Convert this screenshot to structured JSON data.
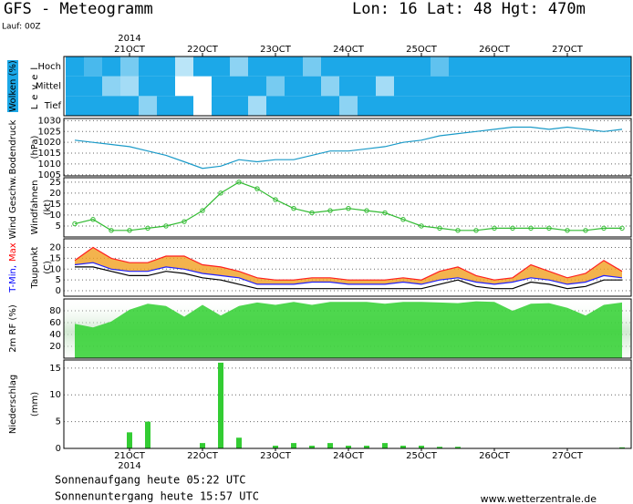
{
  "header": {
    "title": "GFS - Meteogramm",
    "location": "Lon: 16 Lat: 48 Hgt: 470m",
    "run": "Lauf: 00Z"
  },
  "time_axis": {
    "year": "2014",
    "xlim": [
      -21.6,
      165
    ],
    "xticks": [
      {
        "value": 0,
        "label": "21OCT"
      },
      {
        "value": 24,
        "label": "22OCT"
      },
      {
        "value": 48,
        "label": "23OCT"
      },
      {
        "value": 72,
        "label": "24OCT"
      },
      {
        "value": 96,
        "label": "25OCT"
      },
      {
        "value": 120,
        "label": "26OCT"
      },
      {
        "value": 144,
        "label": "27OCT"
      }
    ],
    "x": [
      -18,
      -12,
      -6,
      0,
      6,
      12,
      18,
      24,
      30,
      36,
      42,
      48,
      54,
      60,
      66,
      72,
      78,
      84,
      90,
      96,
      102,
      108,
      114,
      120,
      126,
      132,
      138,
      144,
      150,
      156,
      162
    ]
  },
  "chart_data": [
    {
      "type": "heatmap",
      "ylabels": [
        {
          "text": "Wolken (%)",
          "color": "#ffffff",
          "box": "#1ca8e8"
        },
        {
          "text": "Level",
          "color": "#000000"
        }
      ],
      "series": [
        {
          "name": "Hoch",
          "color": "#1ca8e8",
          "values": [
            100,
            80,
            100,
            60,
            100,
            100,
            30,
            100,
            100,
            50,
            100,
            100,
            100,
            60,
            100,
            100,
            100,
            100,
            100,
            100,
            70,
            100,
            100,
            100,
            100,
            100,
            100,
            100,
            100,
            100,
            100
          ]
        },
        {
          "name": "Mittel",
          "color": "#1ca8e8",
          "values": [
            100,
            100,
            50,
            40,
            100,
            100,
            0,
            0,
            100,
            100,
            100,
            60,
            100,
            100,
            50,
            100,
            100,
            40,
            100,
            100,
            100,
            100,
            100,
            100,
            100,
            100,
            100,
            100,
            100,
            100,
            100
          ]
        },
        {
          "name": "Tief",
          "color": "#1ca8e8",
          "values": [
            100,
            100,
            100,
            100,
            50,
            100,
            100,
            0,
            100,
            100,
            40,
            100,
            100,
            100,
            100,
            50,
            100,
            100,
            100,
            100,
            100,
            100,
            100,
            100,
            100,
            100,
            100,
            100,
            100,
            100,
            100
          ]
        }
      ]
    },
    {
      "type": "line",
      "ylabels": [
        {
          "text": "Bodendruck",
          "color": "#000000"
        },
        {
          "text": "(hPa)",
          "color": "#000000"
        }
      ],
      "ylim": [
        1004.5,
        1031
      ],
      "yticks": [
        1005,
        1010,
        1015,
        1020,
        1025,
        1030
      ],
      "grid": true,
      "series": [
        {
          "color": "#1a9ac8",
          "values": [
            1021,
            1020,
            1019,
            1018,
            1016,
            1014,
            1011,
            1008,
            1009,
            1012,
            1011,
            1012,
            1012,
            1014,
            1016,
            1016,
            1017,
            1018,
            1020,
            1021,
            1023,
            1024,
            1025,
            1026,
            1027,
            1027,
            1026,
            1027,
            1026,
            1025,
            1026
          ]
        }
      ]
    },
    {
      "type": "line",
      "markers": true,
      "ylabels": [
        {
          "text": "Wind Geschw.",
          "color": "#22bb22"
        },
        {
          "text": "Windfahnen",
          "color": "#000000"
        },
        {
          "text": "(kt)",
          "color": "#000000"
        }
      ],
      "ylim": [
        0,
        27
      ],
      "yticks": [
        5,
        10,
        15,
        20,
        25
      ],
      "grid": true,
      "series": [
        {
          "color": "#33bb33",
          "values": [
            6,
            8,
            3,
            3,
            4,
            5,
            7,
            12,
            20,
            25,
            22,
            17,
            13,
            11,
            12,
            13,
            12,
            11,
            8,
            5,
            4,
            3,
            3,
            4,
            4,
            4,
            4,
            3,
            3,
            4,
            4
          ]
        }
      ]
    },
    {
      "type": "band",
      "ylabels": [
        {
          "parts": [
            {
              "text": "T-Min,",
              "color": "#0000ff"
            },
            {
              "text": "Max",
              "color": "#ff0000"
            }
          ]
        },
        {
          "text": "Taupunkt",
          "color": "#000000"
        },
        {
          "text": "(C)",
          "color": "#000000"
        }
      ],
      "ylim": [
        -2.5,
        24
      ],
      "yticks": [
        0,
        5,
        10,
        15,
        20
      ],
      "grid": true,
      "fill": "#f0a020",
      "series": [
        {
          "color": "#ff2020",
          "values": [
            14,
            20,
            15,
            13,
            13,
            16,
            16,
            12,
            11,
            9,
            6,
            5,
            5,
            6,
            6,
            5,
            5,
            5,
            6,
            5,
            9,
            11,
            7,
            5,
            6,
            12,
            9,
            6,
            8,
            14,
            9
          ]
        },
        {
          "color": "#2020ff",
          "values": [
            12,
            13,
            10,
            9,
            9,
            11,
            10,
            8,
            7,
            6,
            3,
            3,
            3,
            4,
            4,
            3,
            3,
            3,
            4,
            3,
            5,
            6,
            4,
            3,
            4,
            6,
            5,
            3,
            4,
            7,
            6
          ]
        },
        {
          "color": "#000000",
          "values": [
            11,
            11,
            9,
            7,
            7,
            9,
            8,
            6,
            5,
            3,
            1,
            1,
            1,
            1,
            1,
            1,
            1,
            1,
            1,
            1,
            3,
            5,
            2,
            1,
            1,
            4,
            3,
            1,
            2,
            5,
            5
          ]
        }
      ]
    },
    {
      "type": "area",
      "ylabels": [
        {
          "text": "2m RF (%)",
          "color": "#22bb22"
        }
      ],
      "ylim": [
        0,
        100
      ],
      "yticks": [
        20,
        40,
        60,
        80
      ],
      "grid": true,
      "series": [
        {
          "color": "#30d030",
          "values": [
            58,
            52,
            62,
            82,
            92,
            88,
            70,
            90,
            72,
            88,
            94,
            90,
            95,
            90,
            95,
            95,
            95,
            92,
            95,
            95,
            94,
            93,
            96,
            95,
            80,
            92,
            93,
            85,
            72,
            90,
            94
          ]
        }
      ]
    },
    {
      "type": "bar",
      "ylabels": [
        {
          "text": "Niederschlag",
          "color": "#000000"
        },
        {
          "text": "(mm)",
          "color": "#000000"
        }
      ],
      "ylim": [
        0,
        16.5
      ],
      "yticks": [
        0,
        5,
        10,
        15
      ],
      "grid": true,
      "series": [
        {
          "color": "#33cc33",
          "values": [
            0,
            0,
            0,
            3,
            5,
            0,
            0,
            1,
            16,
            2,
            0,
            0.5,
            1,
            0.5,
            1,
            0.5,
            0.5,
            1,
            0.5,
            0.5,
            0.3,
            0.3,
            0,
            0,
            0,
            0,
            0,
            0,
            0,
            0,
            0.2
          ]
        }
      ]
    }
  ],
  "footer": {
    "sunrise": "Sonnenaufgang heute 05:22 UTC",
    "sunset": "Sonnenuntergang heute 15:57 UTC",
    "source": "www.wetterzentrale.de"
  }
}
